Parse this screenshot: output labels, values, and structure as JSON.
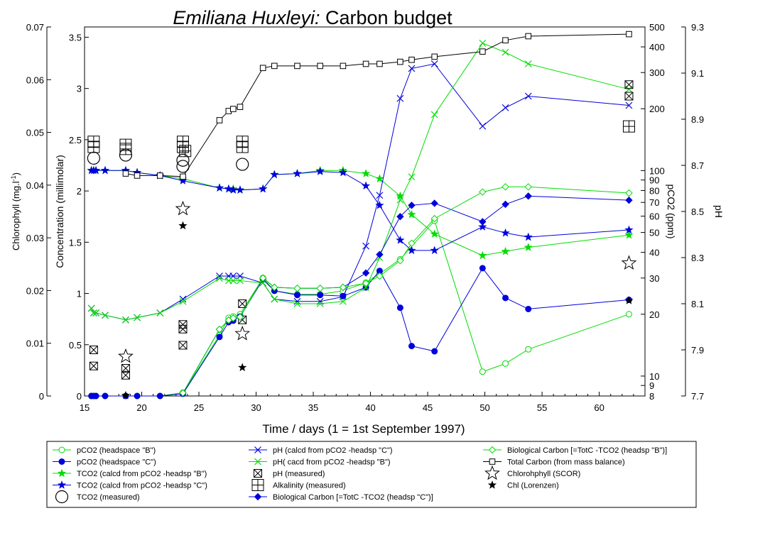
{
  "chart_data": {
    "type": "line",
    "title_italic": "Emiliana Huxleyi:",
    "title_rest": " Carbon budget",
    "xlabel": "Time / days (1 = 1st September 1997)",
    "xlim": [
      15,
      64
    ],
    "x_ticks": [
      "15",
      "20",
      "25",
      "30",
      "35",
      "40",
      "45",
      "50",
      "55",
      "60"
    ],
    "left_outer_axis": {
      "label_main": "Chlorophyll (mg.l",
      "label_sup": "-1",
      "label_end": ")",
      "ylim": [
        0,
        0.07
      ],
      "ticks": [
        "0",
        "0.01",
        "0.02",
        "0.03",
        "0.04",
        "0.05",
        "0.06",
        "0.07"
      ]
    },
    "left_inner_axis": {
      "label": "Concentration (millimolar)",
      "ylim": [
        0,
        3.6
      ],
      "ticks": [
        "0",
        "0.5",
        "1",
        "1.5",
        "2",
        "2.5",
        "3",
        "3.5"
      ]
    },
    "right_inner_axis": {
      "label": "pCO2 (ppm)",
      "scale": "log",
      "ylim": [
        8,
        500
      ],
      "ticks": [
        "8",
        "9",
        "10",
        "20",
        "30",
        "40",
        "50",
        "60",
        "70",
        "80",
        "90",
        "100",
        "200",
        "300",
        "400",
        "500"
      ]
    },
    "right_outer_axis": {
      "label": "pH",
      "ylim": [
        7.7,
        9.3
      ],
      "ticks": [
        "7.7",
        "7.9",
        "8.1",
        "8.3",
        "8.5",
        "8.7",
        "8.9",
        "9.1",
        "9.3"
      ]
    },
    "colors": {
      "green": "#00dd00",
      "blue": "#0000dd",
      "black": "#000000"
    },
    "series": [
      {
        "name": "pCO2 (headspace \"B\")",
        "axis": "pco2",
        "color": "#00dd00",
        "marker": "circle-open",
        "x": [
          15.6,
          15.8,
          16,
          16.8,
          18.6,
          19.6,
          21.6,
          23.6,
          26.8,
          27.6,
          28,
          28.6,
          30.6,
          31.6,
          33.6,
          35.6,
          37.6,
          39.6,
          40.8,
          42.6,
          45.6,
          49.8,
          51.8,
          53.8,
          62.6
        ],
        "y": [
          8,
          8,
          8,
          8,
          8,
          8,
          8,
          8.3,
          15.8,
          19.2,
          19.5,
          20,
          30,
          26,
          25,
          25,
          26,
          28.5,
          31.5,
          37,
          57,
          10.5,
          11.5,
          13.5,
          20
        ]
      },
      {
        "name": "pCO2 (headspace \"C\")",
        "axis": "pco2",
        "color": "#0000dd",
        "marker": "circle-filled",
        "x": [
          15.6,
          15.8,
          16,
          16.8,
          18.6,
          19.6,
          21.6,
          23.6,
          26.8,
          27.6,
          28,
          28.6,
          30.6,
          31.6,
          33.6,
          35.6,
          37.6,
          39.6,
          40.8,
          42.6,
          43.6,
          45.6,
          49.8,
          51.8,
          53.8,
          62.6
        ],
        "y": [
          8,
          8,
          8,
          8,
          8,
          8,
          8,
          8.2,
          15.5,
          18.3,
          18.6,
          19.5,
          29.5,
          26,
          24.8,
          24.8,
          24.5,
          27,
          32.5,
          21.5,
          14,
          13.2,
          33.5,
          24,
          21.2,
          23.5
        ]
      },
      {
        "name": "TCO2 (calcd from pCO2 -headsp \"B\")",
        "axis": "conc",
        "color": "#00dd00",
        "marker": "star-filled",
        "x": [
          15.6,
          15.8,
          16,
          16.8,
          18.6,
          19.6,
          21.6,
          23.6,
          26.8,
          27.6,
          28,
          28.6,
          30.6,
          31.6,
          33.6,
          35.6,
          37.6,
          39.6,
          40.8,
          42.6,
          43.6,
          45.6,
          49.8,
          51.8,
          53.8,
          62.6
        ],
        "y": [
          2.2,
          2.2,
          2.2,
          2.2,
          2.2,
          2.18,
          2.15,
          2.12,
          2.03,
          2.02,
          2.02,
          2.01,
          2.02,
          2.16,
          2.17,
          2.2,
          2.2,
          2.17,
          2.12,
          1.95,
          1.77,
          1.58,
          1.37,
          1.41,
          1.45,
          1.57
        ]
      },
      {
        "name": "TCO2 (calcd from pCO2 -headsp \"C\")",
        "axis": "conc",
        "color": "#0000dd",
        "marker": "star-filled",
        "x": [
          15.6,
          15.8,
          16,
          16.8,
          18.6,
          19.6,
          21.6,
          23.6,
          26.8,
          27.6,
          28,
          28.6,
          30.6,
          31.6,
          33.6,
          35.6,
          37.6,
          39.6,
          40.8,
          42.6,
          43.6,
          45.6,
          49.8,
          51.8,
          53.8,
          62.6
        ],
        "y": [
          2.2,
          2.2,
          2.2,
          2.2,
          2.2,
          2.18,
          2.15,
          2.1,
          2.03,
          2.02,
          2.01,
          2.01,
          2.02,
          2.16,
          2.17,
          2.19,
          2.18,
          2.05,
          1.86,
          1.52,
          1.42,
          1.42,
          1.65,
          1.59,
          1.55,
          1.62
        ]
      },
      {
        "name": "TCO2 (measured)",
        "axis": "conc",
        "color": "#000000",
        "marker": "big-circle-open",
        "x": [
          15.8,
          18.6,
          23.6,
          23.6,
          28.8
        ],
        "y": [
          2.32,
          2.35,
          2.24,
          2.3,
          2.26
        ]
      },
      {
        "name": "pH (calcd from pCO2 -headsp \"C\")",
        "axis": "ph",
        "color": "#0000dd",
        "marker": "x",
        "x": [
          15.6,
          15.8,
          16,
          16.8,
          18.6,
          19.6,
          21.6,
          23.6,
          26.8,
          27.6,
          28,
          28.6,
          30.6,
          31.6,
          33.6,
          35.6,
          37.6,
          39.6,
          40.8,
          42.6,
          43.6,
          45.6,
          49.8,
          51.8,
          53.8,
          62.6
        ],
        "y": [
          8.08,
          8.06,
          8.06,
          8.05,
          8.03,
          8.04,
          8.06,
          8.12,
          8.22,
          8.22,
          8.22,
          8.22,
          8.19,
          8.12,
          8.11,
          8.11,
          8.13,
          8.35,
          8.57,
          8.99,
          9.12,
          9.14,
          8.87,
          8.95,
          9,
          8.96
        ]
      },
      {
        "name": "pH( cacd from pCO2 -headsp \"B\")",
        "axis": "ph",
        "color": "#00dd00",
        "marker": "x",
        "x": [
          15.6,
          15.8,
          16,
          16.8,
          18.6,
          19.6,
          21.6,
          23.6,
          26.8,
          27.6,
          28,
          28.6,
          30.6,
          31.6,
          33.6,
          35.6,
          37.6,
          39.6,
          40.8,
          42.6,
          43.6,
          45.6,
          49.8,
          51.8,
          53.8,
          62.6
        ],
        "y": [
          8.08,
          8.06,
          8.06,
          8.05,
          8.03,
          8.04,
          8.06,
          8.11,
          8.21,
          8.2,
          8.2,
          8.2,
          8.19,
          8.12,
          8.1,
          8.1,
          8.11,
          8.17,
          8.3,
          8.55,
          8.65,
          8.92,
          9.23,
          9.19,
          9.14,
          9.03
        ]
      },
      {
        "name": "pH (measured)",
        "axis": "ph",
        "color": "#000000",
        "marker": "box-x",
        "x": [
          15.8,
          15.8,
          18.6,
          18.6,
          23.6,
          23.6,
          23.6,
          28.8,
          28.8,
          62.6,
          62.6
        ],
        "y": [
          7.9,
          7.83,
          7.82,
          7.79,
          7.92,
          7.99,
          8.01,
          8.03,
          8.1,
          9.05,
          9.0
        ]
      },
      {
        "name": "Alkalinity (measured)",
        "axis": "conc",
        "color": "#000000",
        "marker": "box-plus",
        "x": [
          15.8,
          15.8,
          18.6,
          18.6,
          23.6,
          23.6,
          23.8,
          28.8,
          28.8,
          62.6
        ],
        "y": [
          2.48,
          2.43,
          2.45,
          2.41,
          2.48,
          2.43,
          2.39,
          2.48,
          2.43,
          2.63
        ]
      },
      {
        "name": "Biological Carbon [=TotC -TCO2 (headsp \"C\")]",
        "axis": "conc",
        "color": "#0000dd",
        "marker": "diamond-filled",
        "x": [
          23.6,
          26.8,
          27.6,
          28,
          28.6,
          30.6,
          31.6,
          33.6,
          35.6,
          37.6,
          39.6,
          40.8,
          42.6,
          43.6,
          45.6,
          49.8,
          51.8,
          53.8,
          62.6
        ],
        "y": [
          0.03,
          0.65,
          0.74,
          0.76,
          0.77,
          1.15,
          1.06,
          1.05,
          1.05,
          1.06,
          1.2,
          1.38,
          1.75,
          1.86,
          1.88,
          1.7,
          1.87,
          1.95,
          1.91
        ]
      },
      {
        "name": "Biological Carbon [=TotC -TCO2 (headsp \"B\")]",
        "axis": "conc",
        "color": "#00dd00",
        "marker": "diamond-open",
        "x": [
          23.6,
          26.8,
          27.6,
          28,
          28.6,
          30.6,
          31.6,
          33.6,
          35.6,
          37.6,
          39.6,
          40.8,
          42.6,
          43.6,
          45.6,
          49.8,
          51.8,
          53.8,
          62.6
        ],
        "y": [
          0.03,
          0.65,
          0.74,
          0.76,
          0.77,
          1.15,
          1.06,
          1.05,
          1.05,
          1.06,
          1.1,
          1.17,
          1.32,
          1.49,
          1.73,
          1.99,
          2.04,
          2.04,
          1.98
        ]
      },
      {
        "name": "Total Carbon (from mass balance)",
        "axis": "conc",
        "color": "#000000",
        "marker": "square-open",
        "x": [
          18.6,
          19.6,
          21.6,
          23.6,
          26.8,
          27.6,
          28,
          28.6,
          30.6,
          31.6,
          33.6,
          35.6,
          37.6,
          39.6,
          40.8,
          42.6,
          43.6,
          45.6,
          49.8,
          51.8,
          53.8,
          62.6
        ],
        "y": [
          2.17,
          2.15,
          2.15,
          2.14,
          2.69,
          2.78,
          2.8,
          2.82,
          3.2,
          3.22,
          3.22,
          3.22,
          3.22,
          3.24,
          3.24,
          3.26,
          3.28,
          3.31,
          3.36,
          3.47,
          3.51,
          3.53
        ]
      },
      {
        "name": "Chlorohphyll (SCOR)",
        "axis": "chl",
        "color": "#000000",
        "marker": "star-open",
        "x": [
          18.6,
          23.6,
          28.8,
          62.6
        ],
        "y": [
          0.0075,
          0.0355,
          0.0118,
          0.0252
        ]
      },
      {
        "name": "Chl (Lorenzen)",
        "axis": "chl",
        "color": "#000000",
        "marker": "star-filled",
        "x": [
          18.6,
          23.6,
          28.8,
          62.6
        ],
        "y": [
          0.0001,
          0.0323,
          0.0054,
          0.0181
        ]
      }
    ],
    "legend": {
      "placement": "bottom",
      "columns": [
        [
          {
            "label": "pCO2 (headspace \"B\")",
            "color": "#00dd00",
            "marker": "circle-open",
            "line": true
          },
          {
            "label": "pCO2 (headspace \"C\")",
            "color": "#0000dd",
            "marker": "circle-filled",
            "line": true
          },
          {
            "label": "TCO2 (calcd from pCO2 -headsp \"B\")",
            "color": "#00dd00",
            "marker": "star-filled",
            "line": true
          },
          {
            "label": "TCO2 (calcd from pCO2 -headsp \"C\")",
            "color": "#0000dd",
            "marker": "star-filled",
            "line": true
          },
          {
            "label": "TCO2 (measured)",
            "color": "#000000",
            "marker": "big-circle-open",
            "line": false
          }
        ],
        [
          {
            "label": "pH (calcd from pCO2 -headsp \"C\")",
            "color": "#0000dd",
            "marker": "x",
            "line": true
          },
          {
            "label": "pH( cacd from pCO2 -headsp \"B\")",
            "color": "#00dd00",
            "marker": "x",
            "line": true
          },
          {
            "label": "pH (measured)",
            "color": "#000000",
            "marker": "box-x",
            "line": false
          },
          {
            "label": "Alkalinity (measured)",
            "color": "#000000",
            "marker": "box-plus",
            "line": false
          },
          {
            "label": "Biological Carbon [=TotC -TCO2 (headsp \"C\")]",
            "color": "#0000dd",
            "marker": "diamond-filled",
            "line": true
          }
        ],
        [
          {
            "label": "Biological Carbon [=TotC -TCO2 (headsp \"B\")]",
            "color": "#00dd00",
            "marker": "diamond-open",
            "line": true
          },
          {
            "label": "Total Carbon (from mass balance)",
            "color": "#000000",
            "marker": "square-open",
            "line": true
          },
          {
            "label": "Chlorohphyll (SCOR)",
            "color": "#000000",
            "marker": "star-open",
            "line": false
          },
          {
            "label": "Chl (Lorenzen)",
            "color": "#000000",
            "marker": "star-filled",
            "line": false
          }
        ]
      ]
    }
  }
}
